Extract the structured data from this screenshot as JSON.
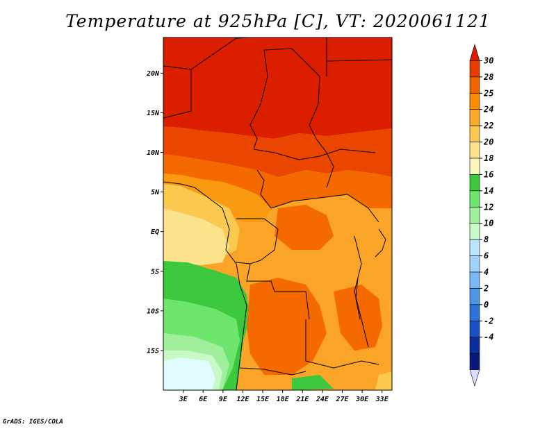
{
  "title": "Temperature at 925hPa [C], VT: 2020061121",
  "credit": "GrADS: IGES/COLA",
  "map": {
    "lon_range": [
      0,
      34.5
    ],
    "lat_range": [
      -20,
      24.5
    ],
    "lat_labels": [
      {
        "lat": 20,
        "label": "20N"
      },
      {
        "lat": 15,
        "label": "15N"
      },
      {
        "lat": 10,
        "label": "10N"
      },
      {
        "lat": 5,
        "label": "5N"
      },
      {
        "lat": 0,
        "label": "EQ"
      },
      {
        "lat": -5,
        "label": "5S"
      },
      {
        "lat": -10,
        "label": "10S"
      },
      {
        "lat": -15,
        "label": "15S"
      }
    ],
    "lon_labels": [
      {
        "lon": 3,
        "label": "3E"
      },
      {
        "lon": 6,
        "label": "6E"
      },
      {
        "lon": 9,
        "label": "9E"
      },
      {
        "lon": 12,
        "label": "12E"
      },
      {
        "lon": 15,
        "label": "15E"
      },
      {
        "lon": 18,
        "label": "18E"
      },
      {
        "lon": 21,
        "label": "21E"
      },
      {
        "lon": 24,
        "label": "24E"
      },
      {
        "lon": 27,
        "label": "27E"
      },
      {
        "lon": 30,
        "label": "30E"
      },
      {
        "lon": 33,
        "label": "33E"
      }
    ]
  },
  "colorbar": {
    "labels": [
      "30",
      "28",
      "25",
      "24",
      "22",
      "20",
      "18",
      "16",
      "14",
      "12",
      "10",
      "8",
      "6",
      "4",
      "2",
      "0",
      "-2",
      "-4"
    ],
    "colors": [
      "#dc1a00",
      "#e73c00",
      "#f06400",
      "#fa8c00",
      "#faaa28",
      "#fbc850",
      "#fde28c",
      "#faf5bd",
      "#3cc83c",
      "#6ee66e",
      "#a0f09b",
      "#c8fac8",
      "#bbe6ff",
      "#a0d2fa",
      "#77b8f5",
      "#5094e6",
      "#2c72d7",
      "#1852c4",
      "#0b2e9c",
      "#08187d",
      "#dcdcff"
    ]
  }
}
